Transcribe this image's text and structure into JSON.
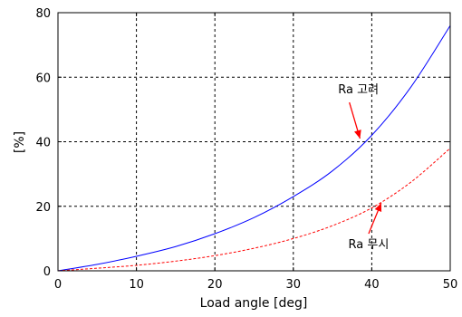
{
  "chart_data": {
    "type": "line",
    "xlabel": "Load angle [deg]",
    "ylabel": "[%]",
    "xlim": [
      0,
      50
    ],
    "ylim": [
      0,
      80
    ],
    "xticks": [
      0,
      10,
      20,
      30,
      40,
      50
    ],
    "yticks": [
      0,
      20,
      40,
      60,
      80
    ],
    "grid": true,
    "series": [
      {
        "name": "Ra 고려",
        "color": "#0000ff",
        "style": "solid",
        "x": [
          0,
          5,
          10,
          15,
          20,
          25,
          30,
          35,
          40,
          45,
          50
        ],
        "y": [
          0,
          2,
          4.5,
          7.5,
          11.5,
          16.5,
          23,
          31,
          42,
          57,
          76
        ]
      },
      {
        "name": "Ra 무시",
        "color": "#ff0000",
        "style": "dashed",
        "x": [
          0,
          5,
          10,
          15,
          20,
          25,
          30,
          35,
          40,
          45,
          50
        ],
        "y": [
          0,
          0.8,
          1.7,
          3,
          4.7,
          7,
          10,
          14,
          19.5,
          27.5,
          38
        ]
      }
    ],
    "annotations": [
      {
        "text": "Ra 고려",
        "arrow_to": [
          38.5,
          41
        ],
        "label_at": [
          38.3,
          55
        ]
      },
      {
        "text": "Ra 무시",
        "arrow_to": [
          41.2,
          21
        ],
        "label_at": [
          39.6,
          7
        ]
      }
    ]
  }
}
